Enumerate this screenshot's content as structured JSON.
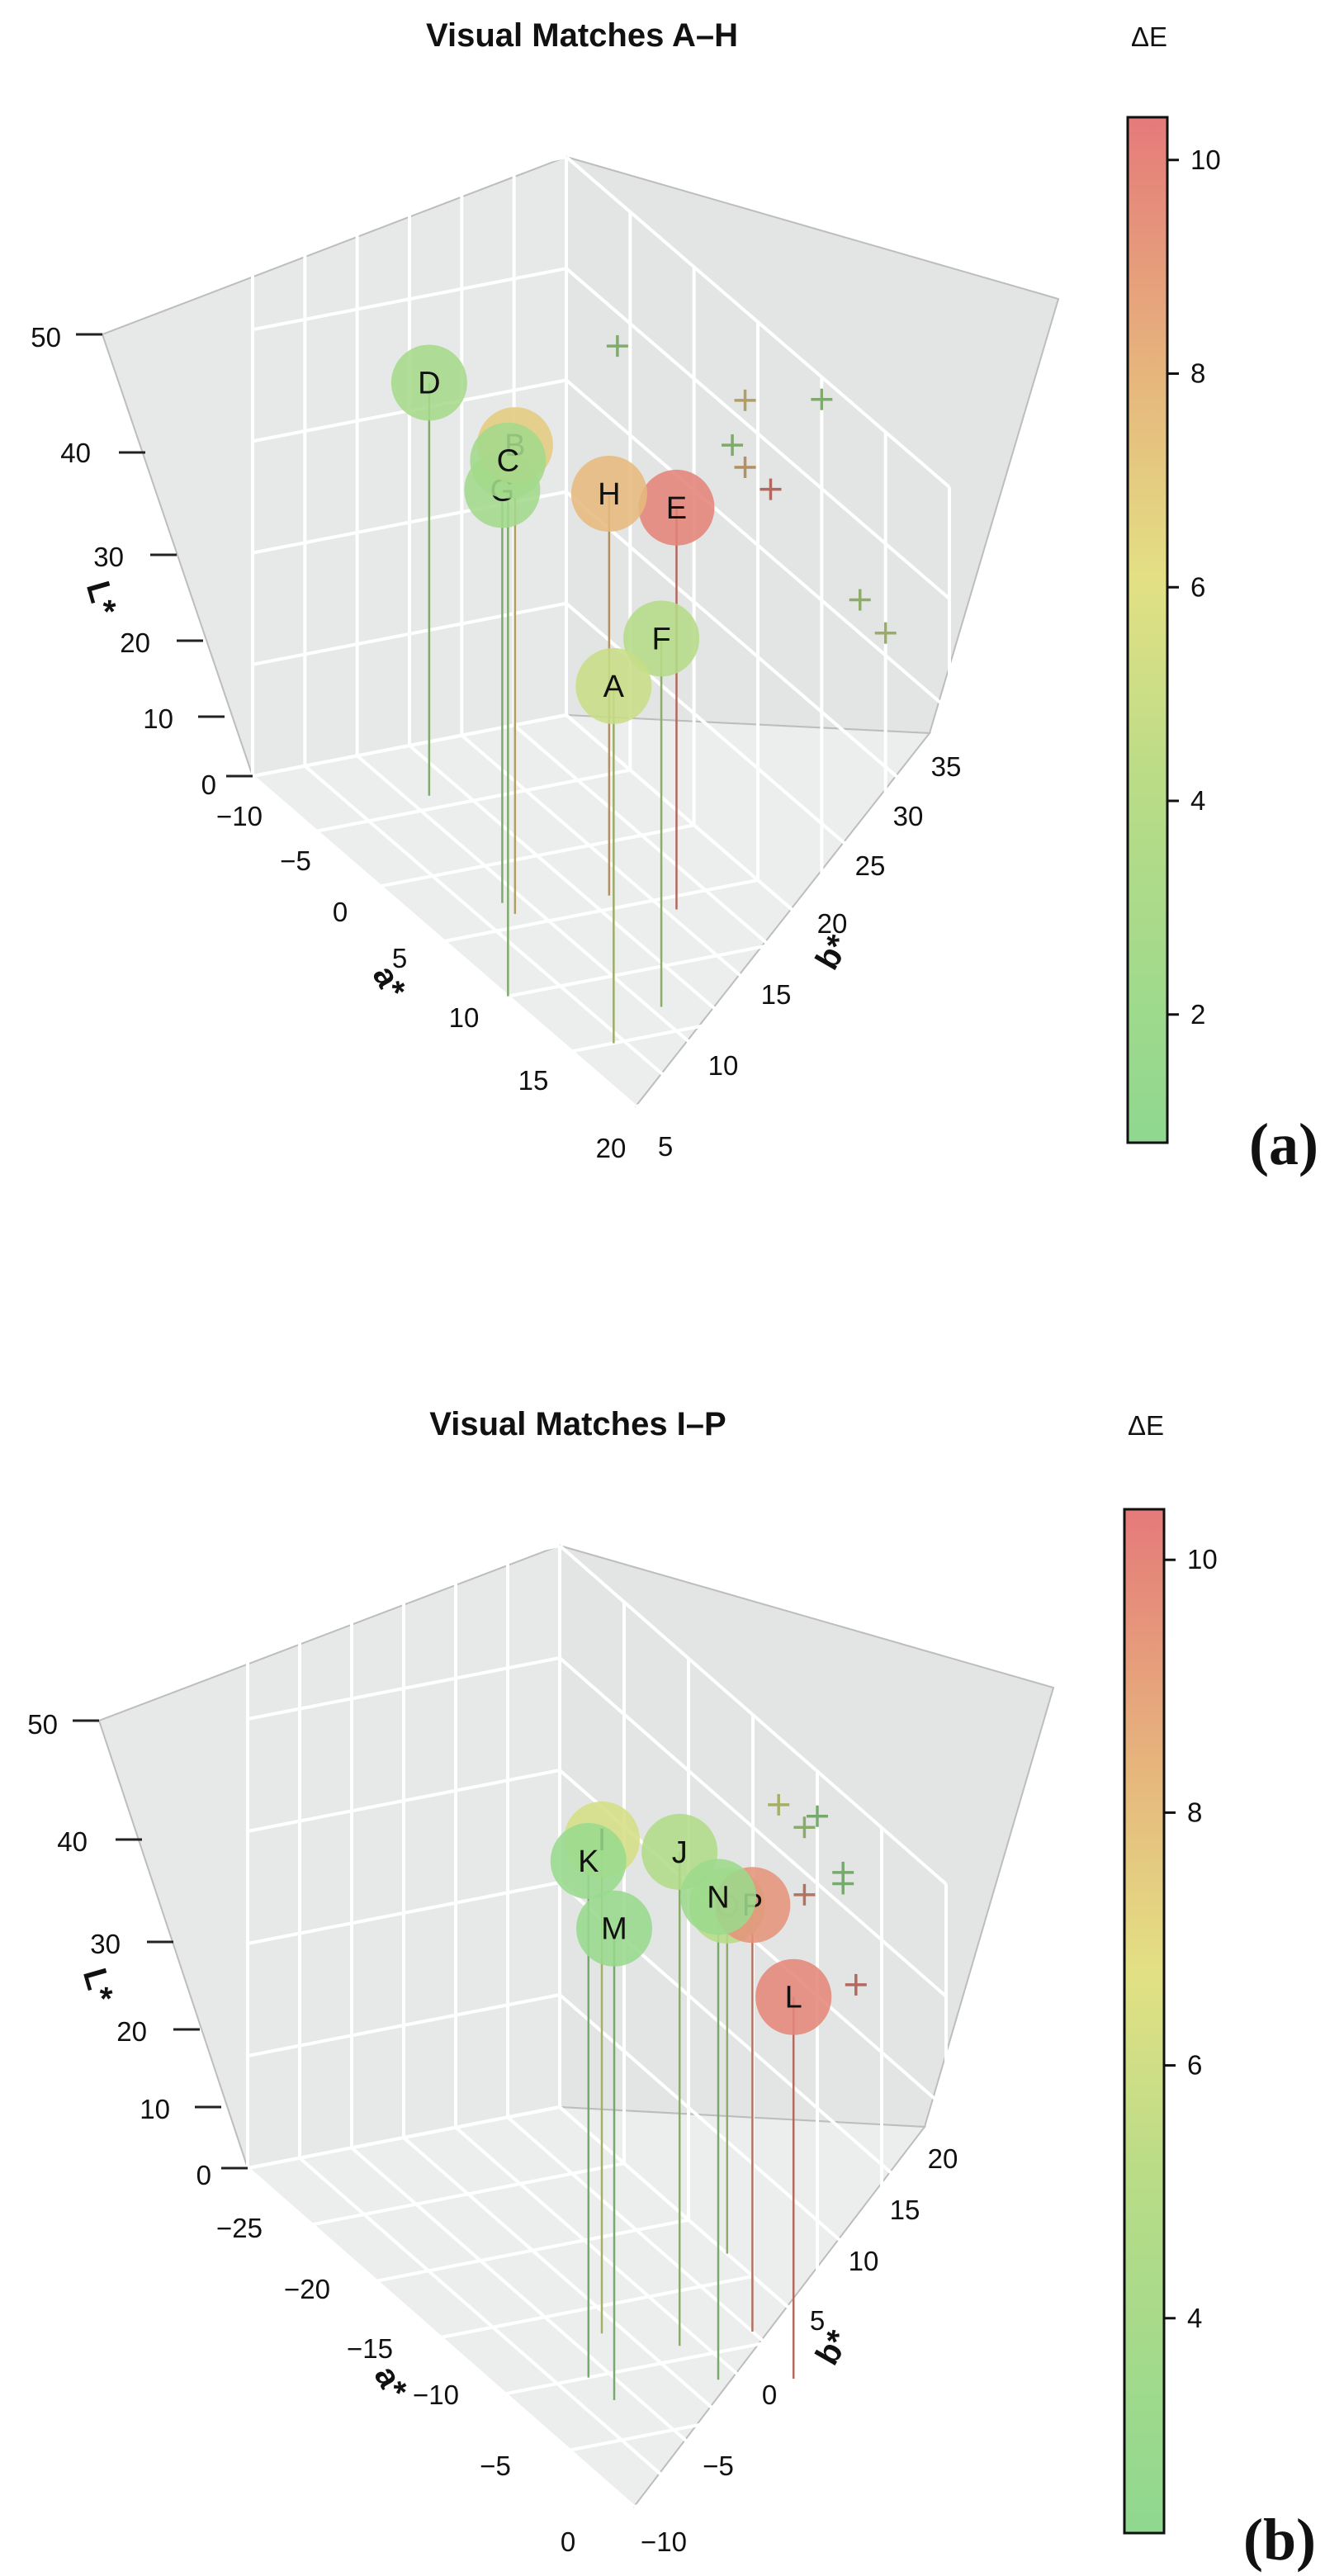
{
  "chart_data": [
    {
      "type": "scatter",
      "subtype": "3d-scatter-with-drop-lines",
      "panel_label": "(a)",
      "title": "Visual Matches A–H",
      "xlabel": "a*",
      "ylabel": "b*",
      "zlabel": "L*",
      "xlim": [
        -10,
        20
      ],
      "ylim": [
        5,
        35
      ],
      "zlim": [
        0,
        50
      ],
      "x_ticks": [
        "−10",
        "−5",
        "0",
        "5",
        "10",
        "15",
        "20"
      ],
      "y_ticks": [
        "5",
        "10",
        "15",
        "20",
        "25",
        "30",
        "35"
      ],
      "z_ticks": [
        "0",
        "10",
        "20",
        "30",
        "40",
        "50"
      ],
      "points": [
        {
          "label": "A",
          "a": 15,
          "b": 31,
          "L": 32,
          "dE": 4.8
        },
        {
          "label": "B",
          "a": 4,
          "b": 27,
          "L": 42,
          "dE": 7.0
        },
        {
          "label": "C",
          "a": 10,
          "b": 35,
          "L": 48,
          "dE": 2.4
        },
        {
          "label": "D",
          "a": -6,
          "b": 23,
          "L": 37,
          "dE": 2.6
        },
        {
          "label": "E",
          "a": 6,
          "b": 14,
          "L": 36,
          "dE": 10.0
        },
        {
          "label": "F",
          "a": 13,
          "b": 24,
          "L": 33,
          "dE": 3.8
        },
        {
          "label": "G",
          "a": 3,
          "b": 27,
          "L": 37,
          "dE": 2.4
        },
        {
          "label": "H",
          "a": 4,
          "b": 18,
          "L": 36,
          "dE": 7.8
        }
      ],
      "colorbar": {
        "title": "ΔE",
        "range": [
          0.8,
          10.4
        ],
        "ticks": [
          "2",
          "4",
          "6",
          "8",
          "10"
        ],
        "tick_values": [
          2,
          4,
          6,
          8,
          10
        ]
      }
    },
    {
      "type": "scatter",
      "subtype": "3d-scatter-with-drop-lines",
      "panel_label": "(b)",
      "title": "Visual Matches I–P",
      "xlabel": "a*",
      "ylabel": "b*",
      "zlabel": "L*",
      "xlim": [
        -28,
        2
      ],
      "ylim": [
        -10,
        20
      ],
      "zlim": [
        0,
        50
      ],
      "x_ticks": [
        "−25",
        "−20",
        "−15",
        "−10",
        "−5",
        "0"
      ],
      "x_tick_values": [
        -25,
        -20,
        -15,
        -10,
        -5,
        0
      ],
      "y_ticks": [
        "−10",
        "−5",
        "0",
        "5",
        "10",
        "15",
        "20"
      ],
      "z_ticks": [
        "0",
        "10",
        "20",
        "30",
        "40",
        "50"
      ],
      "points": [
        {
          "label": "I",
          "a": -11,
          "b": 7,
          "L": 44,
          "dE": 6.2
        },
        {
          "label": "J",
          "a": -9,
          "b": 2,
          "L": 44,
          "dE": 4.6
        },
        {
          "label": "K",
          "a": -8,
          "b": 12,
          "L": 46,
          "dE": 3.0
        },
        {
          "label": "L",
          "a": -5,
          "b": -4,
          "L": 34,
          "dE": 10.0
        },
        {
          "label": "M",
          "a": -6,
          "b": 12,
          "L": 42,
          "dE": 3.0
        },
        {
          "label": "N",
          "a": -6,
          "b": 2,
          "L": 43,
          "dE": 3.2
        },
        {
          "label": "O",
          "a": -15,
          "b": -10,
          "L": 31,
          "dE": 5.0
        },
        {
          "label": "P",
          "a": -9,
          "b": -5,
          "L": 38,
          "dE": 9.5
        }
      ],
      "colorbar": {
        "title": "ΔE",
        "range": [
          2.3,
          10.4
        ],
        "ticks": [
          "4",
          "6",
          "8",
          "10"
        ],
        "tick_values": [
          4,
          6,
          8,
          10
        ]
      }
    }
  ]
}
